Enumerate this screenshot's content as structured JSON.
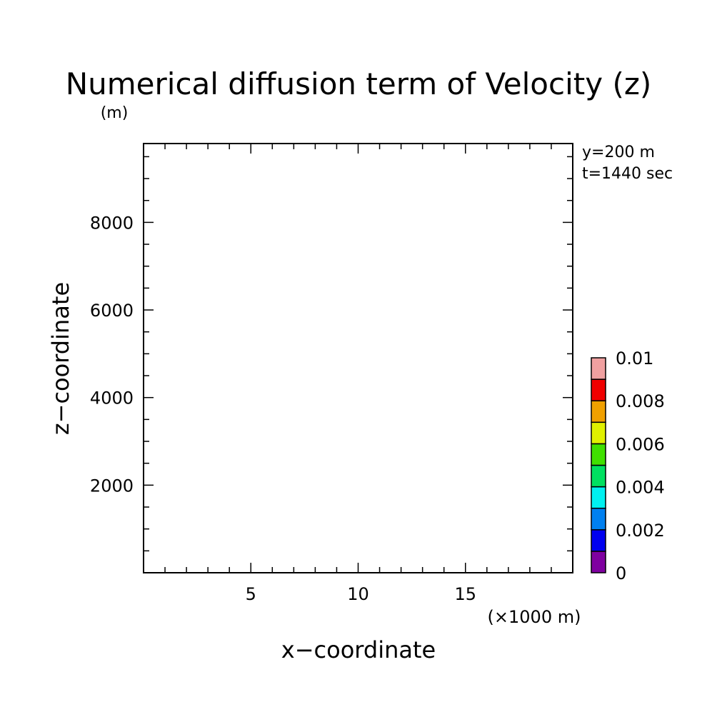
{
  "chart_data": {
    "type": "heatmap",
    "title": "Numerical diffusion term of Velocity (z)",
    "ylabel": "z−coordinate",
    "ylabel_unit": "(m)",
    "xlabel": "x−coordinate",
    "xlabel_unit": "(×1000 m)",
    "annotations": [
      "y=200 m",
      "t=1440 sec"
    ],
    "xlim": [
      0,
      20
    ],
    "ylim": [
      0,
      9800
    ],
    "x_ticks": [
      5,
      10,
      15
    ],
    "y_ticks": [
      2000,
      4000,
      6000,
      8000
    ],
    "grid": false,
    "colorbar": {
      "levels": [
        0,
        0.001,
        0.002,
        0.003,
        0.004,
        0.005,
        0.006,
        0.007,
        0.008,
        0.009,
        0.01
      ],
      "labels": [
        {
          "value": 0,
          "text": "0"
        },
        {
          "value": 0.002,
          "text": "0.002"
        },
        {
          "value": 0.004,
          "text": "0.004"
        },
        {
          "value": 0.006,
          "text": "0.006"
        },
        {
          "value": 0.008,
          "text": "0.008"
        },
        {
          "value": 0.01,
          "text": "0.01"
        }
      ],
      "colors": [
        "#7f00a0",
        "#0000f0",
        "#0080f0",
        "#00f0f0",
        "#00e060",
        "#40e000",
        "#e0f000",
        "#f0a000",
        "#f00000",
        "#f0a0a0"
      ]
    },
    "field_values": []
  }
}
